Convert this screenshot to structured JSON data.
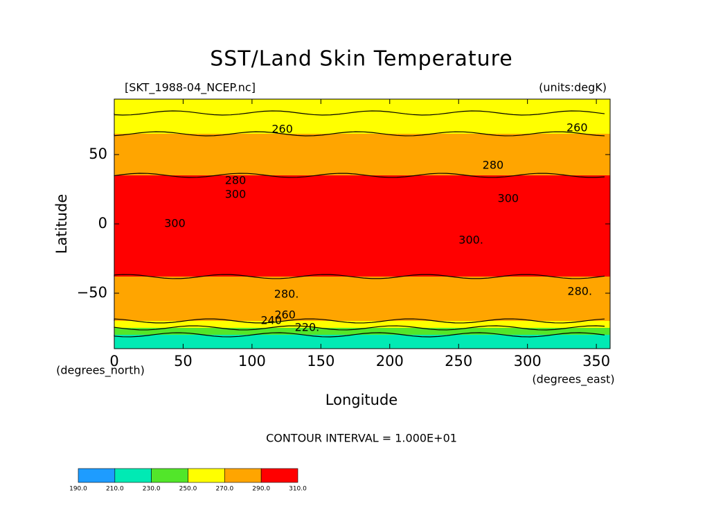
{
  "chart_data": {
    "type": "zonal-contour",
    "title": "SST/Land Skin Temperature",
    "subtitle_left": "[SKT_1988-04_NCEP.nc]",
    "subtitle_right": "(units:degK)",
    "x_label": "Longitude",
    "y_label": "Latitude",
    "x_units": "(degrees_east)",
    "y_units": "(degrees_north)",
    "footer": "CONTOUR INTERVAL = 1.000E+01",
    "xlim": [
      0,
      360
    ],
    "ylim": [
      -90,
      90
    ],
    "xticks": [
      0,
      50,
      100,
      150,
      200,
      250,
      300,
      350
    ],
    "yticks": [
      {
        "value": -50,
        "label": "−50"
      },
      0,
      50
    ],
    "lat_edges": [
      90,
      80,
      65,
      35,
      -38,
      -70,
      -75,
      -80,
      -90
    ],
    "values": [
      255,
      265,
      280,
      300,
      283,
      265,
      245,
      225
    ],
    "levels": [
      {
        "value": 190,
        "label": "190.0"
      },
      {
        "value": 210,
        "label": "210.0"
      },
      {
        "value": 230,
        "label": "230.0"
      },
      {
        "value": 250,
        "label": "250.0"
      },
      {
        "value": 270,
        "label": "270.0"
      },
      {
        "value": 290,
        "label": "290.0"
      },
      {
        "value": 310,
        "label": "310.0"
      }
    ],
    "colors": [
      "#1e9cff",
      "#00eab4",
      "#52e62a",
      "#ffff00",
      "#ffa500",
      "#ff0000"
    ],
    "contour_labels": [
      {
        "text": "260",
        "lon": 122,
        "lat": 68
      },
      {
        "text": "260",
        "lon": 336,
        "lat": 69
      },
      {
        "text": "280",
        "lon": 275,
        "lat": 42
      },
      {
        "text": "280",
        "lon": 88,
        "lat": 31
      },
      {
        "text": "300",
        "lon": 88,
        "lat": 21
      },
      {
        "text": "300",
        "lon": 286,
        "lat": 18
      },
      {
        "text": "300",
        "lon": 44,
        "lat": 0
      },
      {
        "text": "300.",
        "lon": 259,
        "lat": -12
      },
      {
        "text": "280.",
        "lon": 125,
        "lat": -51
      },
      {
        "text": "280.",
        "lon": 338,
        "lat": -49
      },
      {
        "text": "260",
        "lon": 124,
        "lat": -66
      },
      {
        "text": "240",
        "lon": 114,
        "lat": -70
      },
      {
        "text": "220.",
        "lon": 140,
        "lat": -75
      }
    ]
  }
}
